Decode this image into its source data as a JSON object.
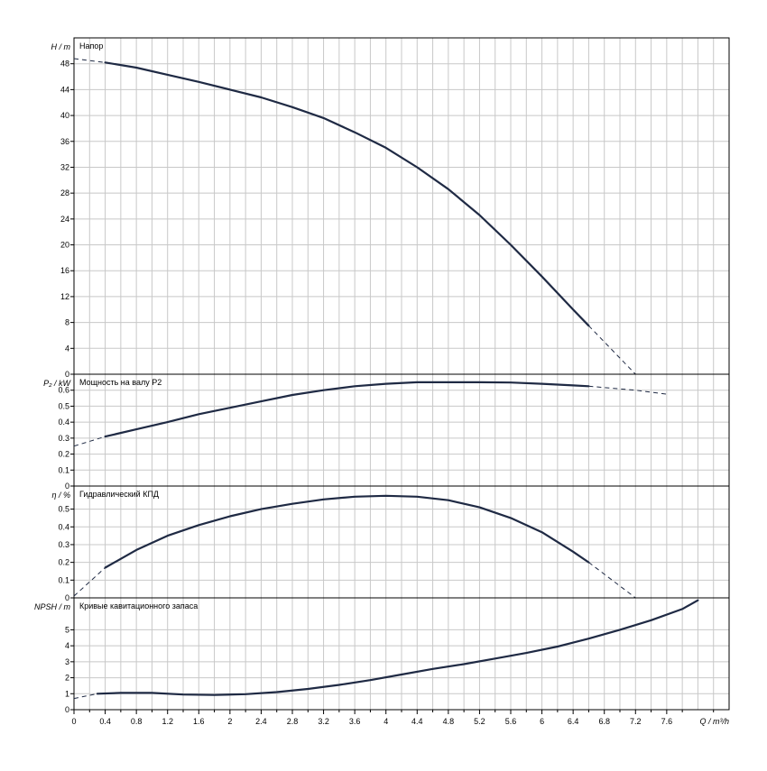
{
  "chart_data": {
    "type": "line",
    "x_axis": {
      "label": "Q / m³/h",
      "range": [
        0,
        8.4
      ],
      "ticks": [
        "0",
        "0.4",
        "0.8",
        "1.2",
        "1.6",
        "2",
        "2.4",
        "2.8",
        "3.2",
        "3.6",
        "4",
        "4.4",
        "4.8",
        "5.2",
        "5.6",
        "6",
        "6.4",
        "6.8",
        "7.2",
        "7.6"
      ]
    },
    "grid": true,
    "panels": [
      {
        "title": "Напор",
        "ylabel": "H / m",
        "ylim": [
          0,
          52
        ],
        "ticks": [
          0,
          4,
          8,
          12,
          16,
          20,
          24,
          28,
          32,
          36,
          40,
          44,
          48
        ],
        "solid": {
          "x": [
            0.4,
            0.8,
            1.2,
            1.6,
            2.0,
            2.4,
            2.8,
            3.2,
            3.6,
            4.0,
            4.4,
            4.8,
            5.2,
            5.6,
            6.0,
            6.4,
            6.6
          ],
          "y": [
            48.2,
            47.4,
            46.3,
            45.2,
            44.0,
            42.8,
            41.3,
            39.6,
            37.4,
            35.0,
            32.0,
            28.6,
            24.6,
            20.0,
            15.1,
            10.0,
            7.5
          ]
        },
        "dashed_start": {
          "x": [
            0,
            0.4
          ],
          "y": [
            48.8,
            48.2
          ]
        },
        "dashed_end": {
          "x": [
            6.6,
            7.0,
            7.2
          ],
          "y": [
            7.5,
            2.5,
            0
          ]
        }
      },
      {
        "title": "Мощность на валу P2",
        "ylabel": "P₂ / kW",
        "ylim": [
          0,
          0.7
        ],
        "ticks": [
          "0",
          "0.1",
          "0.2",
          "0.3",
          "0.4",
          "0.5",
          "0.6"
        ],
        "solid": {
          "x": [
            0.4,
            0.8,
            1.2,
            1.6,
            2.0,
            2.4,
            2.8,
            3.2,
            3.6,
            4.0,
            4.4,
            4.8,
            5.2,
            5.6,
            6.0,
            6.4,
            6.6
          ],
          "y": [
            0.31,
            0.355,
            0.4,
            0.45,
            0.49,
            0.53,
            0.57,
            0.6,
            0.625,
            0.64,
            0.65,
            0.65,
            0.65,
            0.648,
            0.64,
            0.63,
            0.625
          ]
        },
        "dashed_start": {
          "x": [
            0,
            0.4
          ],
          "y": [
            0.25,
            0.31
          ]
        },
        "dashed_end": {
          "x": [
            6.6,
            7.2,
            7.6
          ],
          "y": [
            0.625,
            0.6,
            0.575
          ]
        }
      },
      {
        "title": "Гидравлический КПД",
        "ylabel": "η / %",
        "ylim": [
          0,
          0.63
        ],
        "ticks": [
          "0",
          "0.1",
          "0.2",
          "0.3",
          "0.4",
          "0.5"
        ],
        "solid": {
          "x": [
            0.4,
            0.8,
            1.2,
            1.6,
            2.0,
            2.4,
            2.8,
            3.2,
            3.6,
            4.0,
            4.4,
            4.8,
            5.2,
            5.6,
            6.0,
            6.4,
            6.6
          ],
          "y": [
            0.17,
            0.27,
            0.35,
            0.41,
            0.46,
            0.5,
            0.53,
            0.555,
            0.57,
            0.575,
            0.57,
            0.55,
            0.51,
            0.45,
            0.37,
            0.26,
            0.2
          ]
        },
        "dashed_start": {
          "x": [
            0,
            0.4
          ],
          "y": [
            0.01,
            0.17
          ]
        },
        "dashed_end": {
          "x": [
            6.6,
            7.2
          ],
          "y": [
            0.2,
            0
          ]
        }
      },
      {
        "title": "Кривые кавитационного запаса",
        "ylabel": "NPSH / m",
        "ylim": [
          0,
          7
        ],
        "ticks": [
          0,
          1,
          2,
          3,
          4,
          5
        ],
        "solid": {
          "x": [
            0.3,
            0.6,
            1.0,
            1.4,
            1.8,
            2.2,
            2.6,
            3.0,
            3.4,
            3.8,
            4.2,
            4.6,
            5.0,
            5.4,
            5.8,
            6.2,
            6.6,
            7.0,
            7.4,
            7.8,
            8.0
          ],
          "y": [
            1.0,
            1.05,
            1.05,
            0.95,
            0.92,
            0.97,
            1.1,
            1.3,
            1.55,
            1.85,
            2.2,
            2.55,
            2.85,
            3.2,
            3.55,
            3.95,
            4.45,
            5.0,
            5.6,
            6.3,
            6.85
          ]
        },
        "dashed_start": {
          "x": [
            0,
            0.3
          ],
          "y": [
            0.7,
            1.0
          ]
        }
      }
    ]
  }
}
